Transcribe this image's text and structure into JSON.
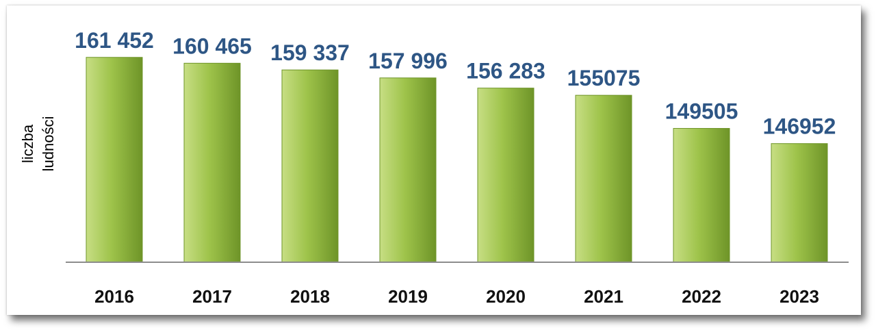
{
  "chart_data": {
    "type": "bar",
    "title": "",
    "xlabel": "",
    "ylabel": "liczba ludności",
    "ylabel_lines": [
      "liczba",
      "ludności"
    ],
    "categories": [
      "2016",
      "2017",
      "2018",
      "2019",
      "2020",
      "2021",
      "2022",
      "2023"
    ],
    "values": [
      161452,
      160465,
      159337,
      157996,
      156283,
      155075,
      149505,
      146952
    ],
    "data_labels": [
      "161 452",
      "160 465",
      "159 337",
      "157 996",
      "156 283",
      "155075",
      "149505",
      "146952"
    ],
    "ylim": [
      127000,
      162000
    ],
    "grid": false,
    "legend": "none",
    "colors": {
      "bar_light": "#c7de84",
      "bar_mid": "#9ec34a",
      "bar_dark": "#6e9428",
      "value_label": "#2e5685",
      "axis": "#8c8c8c"
    }
  }
}
